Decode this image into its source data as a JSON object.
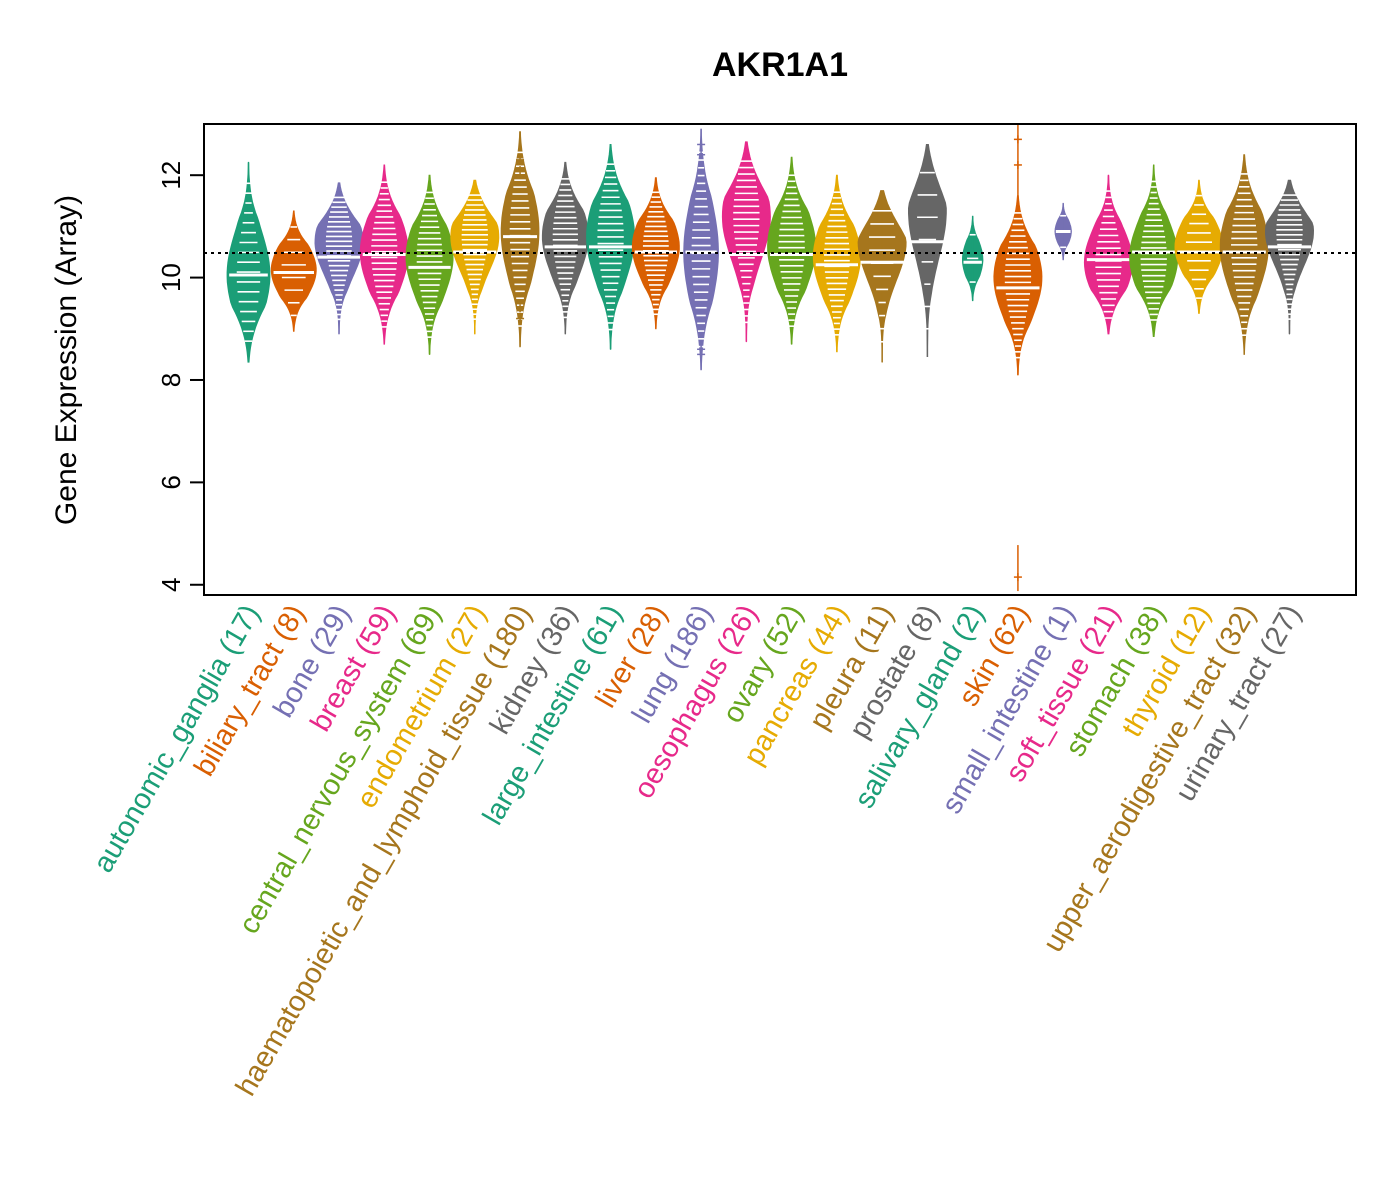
{
  "chart_data": {
    "type": "beeswarm-violin",
    "title": "AKR1A1",
    "ylabel": "Gene Expression (Array)",
    "ylim": [
      3.8,
      13.0
    ],
    "yticks": [
      4,
      6,
      8,
      10,
      12
    ],
    "reference_line": 10.48,
    "categories": [
      {
        "name": "autonomic_ganglia",
        "n": 17,
        "label": "autonomic_ganglia (17)",
        "color": "#1B9E77",
        "min": 8.35,
        "max": 12.25,
        "median": 10.05,
        "mode": 10.05,
        "width": 0.42
      },
      {
        "name": "biliary_tract",
        "n": 8,
        "label": "biliary_tract (8)",
        "color": "#D95F02",
        "min": 8.95,
        "max": 11.3,
        "median": 10.1,
        "mode": 10.15,
        "width": 0.44
      },
      {
        "name": "bone",
        "n": 29,
        "label": "bone (29)",
        "color": "#7570B3",
        "min": 8.9,
        "max": 11.85,
        "median": 10.4,
        "mode": 10.7,
        "width": 0.47
      },
      {
        "name": "breast",
        "n": 59,
        "label": "breast (59)",
        "color": "#E7298A",
        "min": 8.7,
        "max": 12.2,
        "median": 10.45,
        "mode": 10.5,
        "width": 0.47
      },
      {
        "name": "central_nervous_system",
        "n": 69,
        "label": "central_nervous_system (69)",
        "color": "#66A61E",
        "min": 8.5,
        "max": 12.0,
        "median": 10.2,
        "mode": 10.4,
        "width": 0.46
      },
      {
        "name": "endometrium",
        "n": 27,
        "label": "endometrium (27)",
        "color": "#E6AB02",
        "min": 8.9,
        "max": 11.9,
        "median": 10.5,
        "mode": 10.8,
        "width": 0.47
      },
      {
        "name": "haematopoietic_and_lymphoid_tissue",
        "n": 180,
        "label": "haematopoietic_and_lymphoid_tissue (180)",
        "color": "#A6761D",
        "min": 8.65,
        "max": 12.85,
        "median": 10.8,
        "mode": 10.9,
        "width": 0.37
      },
      {
        "name": "kidney",
        "n": 36,
        "label": "kidney (36)",
        "color": "#666666",
        "min": 8.9,
        "max": 12.25,
        "median": 10.6,
        "mode": 10.8,
        "width": 0.45
      },
      {
        "name": "large_intestine",
        "n": 61,
        "label": "large_intestine (61)",
        "color": "#1B9E77",
        "min": 8.6,
        "max": 12.6,
        "median": 10.6,
        "mode": 10.8,
        "width": 0.47
      },
      {
        "name": "liver",
        "n": 28,
        "label": "liver (28)",
        "color": "#D95F02",
        "min": 9.0,
        "max": 11.95,
        "median": 10.5,
        "mode": 10.6,
        "width": 0.46
      },
      {
        "name": "lung",
        "n": 186,
        "label": "lung (186)",
        "color": "#7570B3",
        "min": 8.2,
        "max": 12.9,
        "median": 10.5,
        "mode": 10.5,
        "width": 0.34
      },
      {
        "name": "oesophagus",
        "n": 26,
        "label": "oesophagus (26)",
        "color": "#E7298A",
        "min": 8.75,
        "max": 12.65,
        "median": 10.45,
        "mode": 11.2,
        "width": 0.47
      },
      {
        "name": "ovary",
        "n": 52,
        "label": "ovary (52)",
        "color": "#66A61E",
        "min": 8.7,
        "max": 12.35,
        "median": 10.45,
        "mode": 10.6,
        "width": 0.47
      },
      {
        "name": "pancreas",
        "n": 44,
        "label": "pancreas (44)",
        "color": "#E6AB02",
        "min": 8.55,
        "max": 12.0,
        "median": 10.25,
        "mode": 10.4,
        "width": 0.46
      },
      {
        "name": "pleura",
        "n": 11,
        "label": "pleura (11)",
        "color": "#A6761D",
        "min": 8.35,
        "max": 11.7,
        "median": 10.3,
        "mode": 10.7,
        "width": 0.47
      },
      {
        "name": "prostate",
        "n": 8,
        "label": "prostate (8)",
        "color": "#666666",
        "min": 8.45,
        "max": 12.6,
        "median": 10.7,
        "mode": 11.3,
        "width": 0.37
      },
      {
        "name": "salivary_gland",
        "n": 2,
        "label": "salivary_gland (2)",
        "color": "#1B9E77",
        "min": 9.55,
        "max": 11.2,
        "median": 10.3,
        "mode": 10.35,
        "width": 0.2
      },
      {
        "name": "skin",
        "n": 62,
        "label": "skin (62)",
        "color": "#D95F02",
        "min": 8.1,
        "max": 11.6,
        "median": 9.8,
        "mode": 10.0,
        "width": 0.47
      },
      {
        "name": "small_intestine",
        "n": 1,
        "label": "small_intestine (1)",
        "color": "#7570B3",
        "min": 10.35,
        "max": 11.45,
        "median": 10.9,
        "mode": 10.9,
        "width": 0.16
      },
      {
        "name": "soft_tissue",
        "n": 21,
        "label": "soft_tissue (21)",
        "color": "#E7298A",
        "min": 8.9,
        "max": 12.0,
        "median": 10.35,
        "mode": 10.3,
        "width": 0.47
      },
      {
        "name": "stomach",
        "n": 38,
        "label": "stomach (38)",
        "color": "#66A61E",
        "min": 8.85,
        "max": 12.2,
        "median": 10.5,
        "mode": 10.4,
        "width": 0.47
      },
      {
        "name": "thyroid",
        "n": 12,
        "label": "thyroid (12)",
        "color": "#E6AB02",
        "min": 9.3,
        "max": 11.9,
        "median": 10.5,
        "mode": 10.6,
        "width": 0.47
      },
      {
        "name": "upper_aerodigestive_tract",
        "n": 32,
        "label": "upper_aerodigestive_tract (32)",
        "color": "#A6761D",
        "min": 8.5,
        "max": 12.4,
        "median": 10.5,
        "mode": 10.6,
        "width": 0.47
      },
      {
        "name": "urinary_tract",
        "n": 27,
        "label": "urinary_tract (27)",
        "color": "#666666",
        "min": 8.9,
        "max": 11.9,
        "median": 10.6,
        "mode": 10.9,
        "width": 0.47
      }
    ],
    "outliers": [
      {
        "category": "haematopoietic_and_lymphoid_tissue",
        "values": [
          12.3,
          12.1,
          9.2,
          9.4
        ]
      },
      {
        "category": "lung",
        "values": [
          12.6,
          12.4,
          8.6,
          8.5
        ]
      },
      {
        "category": "skin",
        "values": [
          12.7,
          12.2,
          4.15
        ]
      }
    ]
  }
}
